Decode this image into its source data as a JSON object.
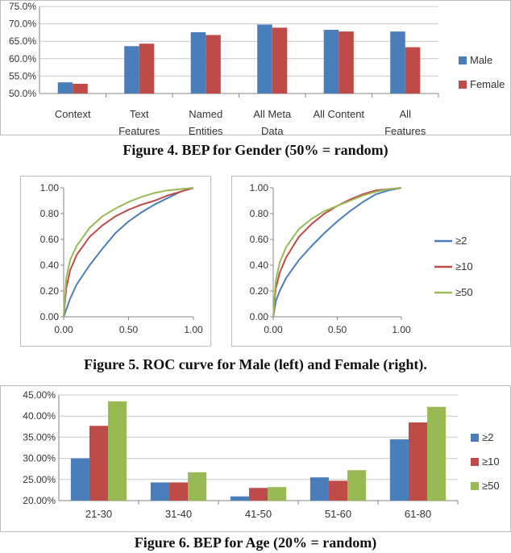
{
  "colors": {
    "blue": "#4a7ebb",
    "red": "#be4b48",
    "green": "#98b954",
    "grid": "#c8c8c8",
    "axis": "#868686"
  },
  "captions": {
    "fig4": "Figure 4. BEP for Gender (50% = random)",
    "fig5": "Figure 5. ROC curve for Male (left) and Female (right).",
    "fig6": "Figure 6. BEP for Age (20% = random)"
  },
  "chart_data": [
    {
      "type": "bar",
      "title": "",
      "categories": [
        [
          "Context"
        ],
        [
          "Text",
          "Features"
        ],
        [
          "Named",
          "Entities"
        ],
        [
          "All Meta",
          "Data"
        ],
        [
          "All Content"
        ],
        [
          "All",
          "Features"
        ]
      ],
      "series": [
        {
          "name": "Male",
          "color": "#4a7ebb",
          "values": [
            53.2,
            63.6,
            67.6,
            69.8,
            68.3,
            67.8
          ]
        },
        {
          "name": "Female",
          "color": "#be4b48",
          "values": [
            52.8,
            64.3,
            66.8,
            68.9,
            67.8,
            63.3
          ]
        }
      ],
      "ylim": [
        50,
        75
      ],
      "yticks": [
        "50.0%",
        "55.0%",
        "60.0%",
        "65.0%",
        "70.0%",
        "75.0%"
      ],
      "ytick_values": [
        50,
        55,
        60,
        65,
        70,
        75
      ],
      "grid": true,
      "legend": "right"
    },
    {
      "type": "line",
      "title": "",
      "panel": "Male",
      "xlim": [
        0,
        1
      ],
      "ylim": [
        0,
        1
      ],
      "xticks": [
        "0.00",
        "0.50",
        "1.00"
      ],
      "xtick_values": [
        0,
        0.5,
        1
      ],
      "yticks": [
        "0.00",
        "0.20",
        "0.40",
        "0.60",
        "0.80",
        "1.00"
      ],
      "ytick_values": [
        0,
        0.2,
        0.4,
        0.6,
        0.8,
        1
      ],
      "series": [
        {
          "name": "≥2",
          "color": "#4a7ebb",
          "x": [
            0,
            0.05,
            0.1,
            0.2,
            0.3,
            0.4,
            0.5,
            0.6,
            0.7,
            0.8,
            0.9,
            1.0
          ],
          "y": [
            0,
            0.14,
            0.25,
            0.4,
            0.53,
            0.65,
            0.74,
            0.81,
            0.87,
            0.92,
            0.97,
            1.0
          ]
        },
        {
          "name": "≥10",
          "color": "#be4b48",
          "x": [
            0,
            0.02,
            0.05,
            0.1,
            0.2,
            0.3,
            0.4,
            0.5,
            0.6,
            0.7,
            0.8,
            0.9,
            1.0
          ],
          "y": [
            0,
            0.22,
            0.36,
            0.48,
            0.62,
            0.71,
            0.78,
            0.83,
            0.87,
            0.9,
            0.94,
            0.97,
            1.0
          ]
        },
        {
          "name": "≥50",
          "color": "#98b954",
          "x": [
            0,
            0.02,
            0.05,
            0.1,
            0.2,
            0.3,
            0.4,
            0.5,
            0.6,
            0.7,
            0.8,
            0.9,
            1.0
          ],
          "y": [
            0,
            0.3,
            0.44,
            0.55,
            0.69,
            0.78,
            0.84,
            0.89,
            0.93,
            0.96,
            0.98,
            0.99,
            1.0
          ]
        }
      ],
      "grid": false
    },
    {
      "type": "line",
      "title": "",
      "panel": "Female",
      "xlim": [
        0,
        1
      ],
      "ylim": [
        0,
        1
      ],
      "xticks": [
        "0.00",
        "0.50",
        "1.00"
      ],
      "xtick_values": [
        0,
        0.5,
        1
      ],
      "yticks": [
        "0.00",
        "0.20",
        "0.40",
        "0.60",
        "0.80",
        "1.00"
      ],
      "ytick_values": [
        0,
        0.2,
        0.4,
        0.6,
        0.8,
        1
      ],
      "series": [
        {
          "name": "≥2",
          "color": "#4a7ebb",
          "x": [
            0,
            0.02,
            0.05,
            0.1,
            0.2,
            0.3,
            0.4,
            0.5,
            0.6,
            0.7,
            0.8,
            0.9,
            1.0
          ],
          "y": [
            0,
            0.12,
            0.2,
            0.3,
            0.44,
            0.55,
            0.65,
            0.74,
            0.82,
            0.89,
            0.95,
            0.98,
            1.0
          ]
        },
        {
          "name": "≥10",
          "color": "#be4b48",
          "x": [
            0,
            0.02,
            0.05,
            0.1,
            0.2,
            0.3,
            0.4,
            0.5,
            0.6,
            0.7,
            0.8,
            0.9,
            1.0
          ],
          "y": [
            0,
            0.22,
            0.34,
            0.46,
            0.62,
            0.72,
            0.8,
            0.86,
            0.91,
            0.95,
            0.98,
            0.99,
            1.0
          ]
        },
        {
          "name": "≥50",
          "color": "#98b954",
          "x": [
            0,
            0.02,
            0.05,
            0.1,
            0.2,
            0.3,
            0.4,
            0.5,
            0.6,
            0.7,
            0.8,
            0.9,
            1.0
          ],
          "y": [
            0,
            0.28,
            0.42,
            0.54,
            0.68,
            0.76,
            0.82,
            0.86,
            0.9,
            0.94,
            0.97,
            0.99,
            1.0
          ]
        }
      ],
      "legend": "right",
      "grid": false
    },
    {
      "type": "bar",
      "title": "",
      "categories": [
        [
          "21-30"
        ],
        [
          "31-40"
        ],
        [
          "41-50"
        ],
        [
          "51-60"
        ],
        [
          "61-80"
        ]
      ],
      "series": [
        {
          "name": "≥2",
          "color": "#4a7ebb",
          "values": [
            30.0,
            24.3,
            21.0,
            25.5,
            34.5
          ]
        },
        {
          "name": "≥10",
          "color": "#be4b48",
          "values": [
            37.7,
            24.3,
            23.0,
            24.7,
            38.5
          ]
        },
        {
          "name": "≥50",
          "color": "#98b954",
          "values": [
            43.5,
            26.7,
            23.2,
            27.2,
            42.2
          ]
        }
      ],
      "ylim": [
        20,
        45
      ],
      "yticks": [
        "20.00%",
        "25.00%",
        "30.00%",
        "35.00%",
        "40.00%",
        "45.00%"
      ],
      "ytick_values": [
        20,
        25,
        30,
        35,
        40,
        45
      ],
      "grid": true,
      "legend": "right"
    }
  ]
}
